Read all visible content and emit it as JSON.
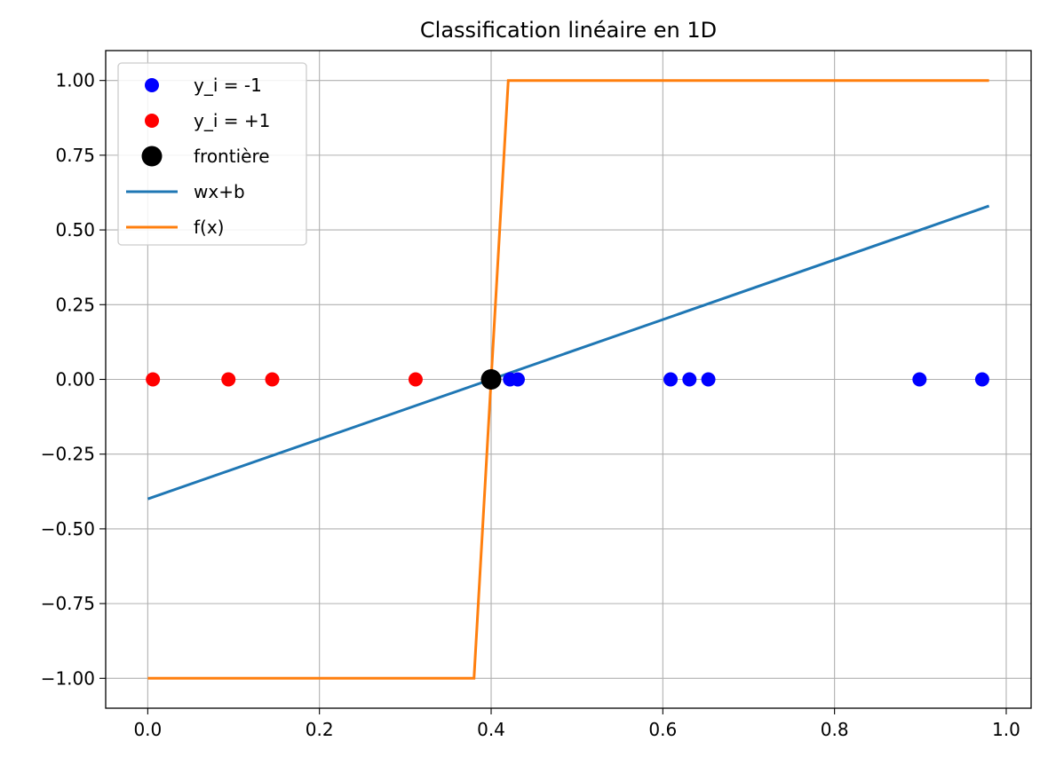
{
  "chart_data": {
    "type": "line",
    "title": "Classification linéaire en 1D",
    "xlabel": "",
    "ylabel": "",
    "xlim": [
      -0.049,
      1.029
    ],
    "ylim": [
      -1.1,
      1.1
    ],
    "grid": true,
    "legend_position": "top-left",
    "x_ticks": [
      0.0,
      0.2,
      0.4,
      0.6,
      0.8,
      1.0
    ],
    "x_tick_labels": [
      "0.0",
      "0.2",
      "0.4",
      "0.6",
      "0.8",
      "1.0"
    ],
    "y_ticks": [
      1.0,
      0.75,
      0.5,
      0.25,
      0.0,
      -0.25,
      -0.5,
      -0.75,
      -1.0
    ],
    "y_tick_labels": [
      "1.00",
      "0.75",
      "0.50",
      "0.25",
      "0.00",
      "−0.25",
      "−0.50",
      "−0.75",
      "−1.00"
    ],
    "series": [
      {
        "name": "y_i = -1",
        "kind": "scatter",
        "color": "#0000ff",
        "x": [
          0.422,
          0.431,
          0.609,
          0.631,
          0.653,
          0.899,
          0.972
        ],
        "y": [
          0,
          0,
          0,
          0,
          0,
          0,
          0
        ]
      },
      {
        "name": "y_i = +1",
        "kind": "scatter",
        "color": "#ff0000",
        "x": [
          0.006,
          0.094,
          0.145,
          0.312
        ],
        "y": [
          0,
          0,
          0,
          0
        ]
      },
      {
        "name": "frontière",
        "kind": "scatter-large",
        "color": "#000000",
        "x": [
          0.4
        ],
        "y": [
          0
        ]
      },
      {
        "name": "wx+b",
        "kind": "line",
        "color": "#1f77b4",
        "x": [
          0.0,
          0.98
        ],
        "y": [
          -0.4,
          0.58
        ]
      },
      {
        "name": "f(x)",
        "kind": "line",
        "color": "#ff7f0e",
        "x": [
          0.0,
          0.38,
          0.42,
          0.98
        ],
        "y": [
          -1.0,
          -1.0,
          1.0,
          1.0
        ]
      }
    ]
  }
}
